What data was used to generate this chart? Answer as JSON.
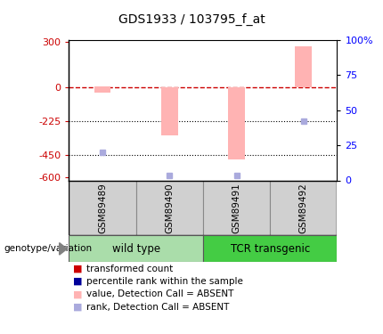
{
  "title": "GDS1933 / 103795_f_at",
  "samples": [
    "GSM89489",
    "GSM89490",
    "GSM89491",
    "GSM89492"
  ],
  "bar_values": [
    -40,
    -320,
    -480,
    270
  ],
  "bar_color": "#FFB3B3",
  "rank_squares": [
    -435,
    -590,
    -590,
    -230
  ],
  "rank_color": "#AAAADD",
  "ylim_left": [
    -620,
    310
  ],
  "yticks_left": [
    -600,
    -450,
    -225,
    0,
    300
  ],
  "ytick_labels_left": [
    "-600",
    "-450",
    "-225",
    "0",
    "300"
  ],
  "ylim_right": [
    0,
    100
  ],
  "yticks_right": [
    0,
    25,
    50,
    75,
    100
  ],
  "ytick_labels_right": [
    "0",
    "25",
    "50",
    "75",
    "100%"
  ],
  "dotted_lines": [
    -225,
    -450
  ],
  "group1_label": "wild type",
  "group2_label": "TCR transgenic",
  "group1_color": "#AADDAA",
  "group2_color": "#44CC44",
  "genotype_label": "genotype/variation",
  "legend_items": [
    {
      "label": "transformed count",
      "color": "#CC0000"
    },
    {
      "label": "percentile rank within the sample",
      "color": "#000099"
    },
    {
      "label": "value, Detection Call = ABSENT",
      "color": "#FFB3B3"
    },
    {
      "label": "rank, Detection Call = ABSENT",
      "color": "#AAAADD"
    }
  ],
  "bar_width": 0.25,
  "fig_width": 4.3,
  "fig_height": 3.75,
  "dpi": 100
}
